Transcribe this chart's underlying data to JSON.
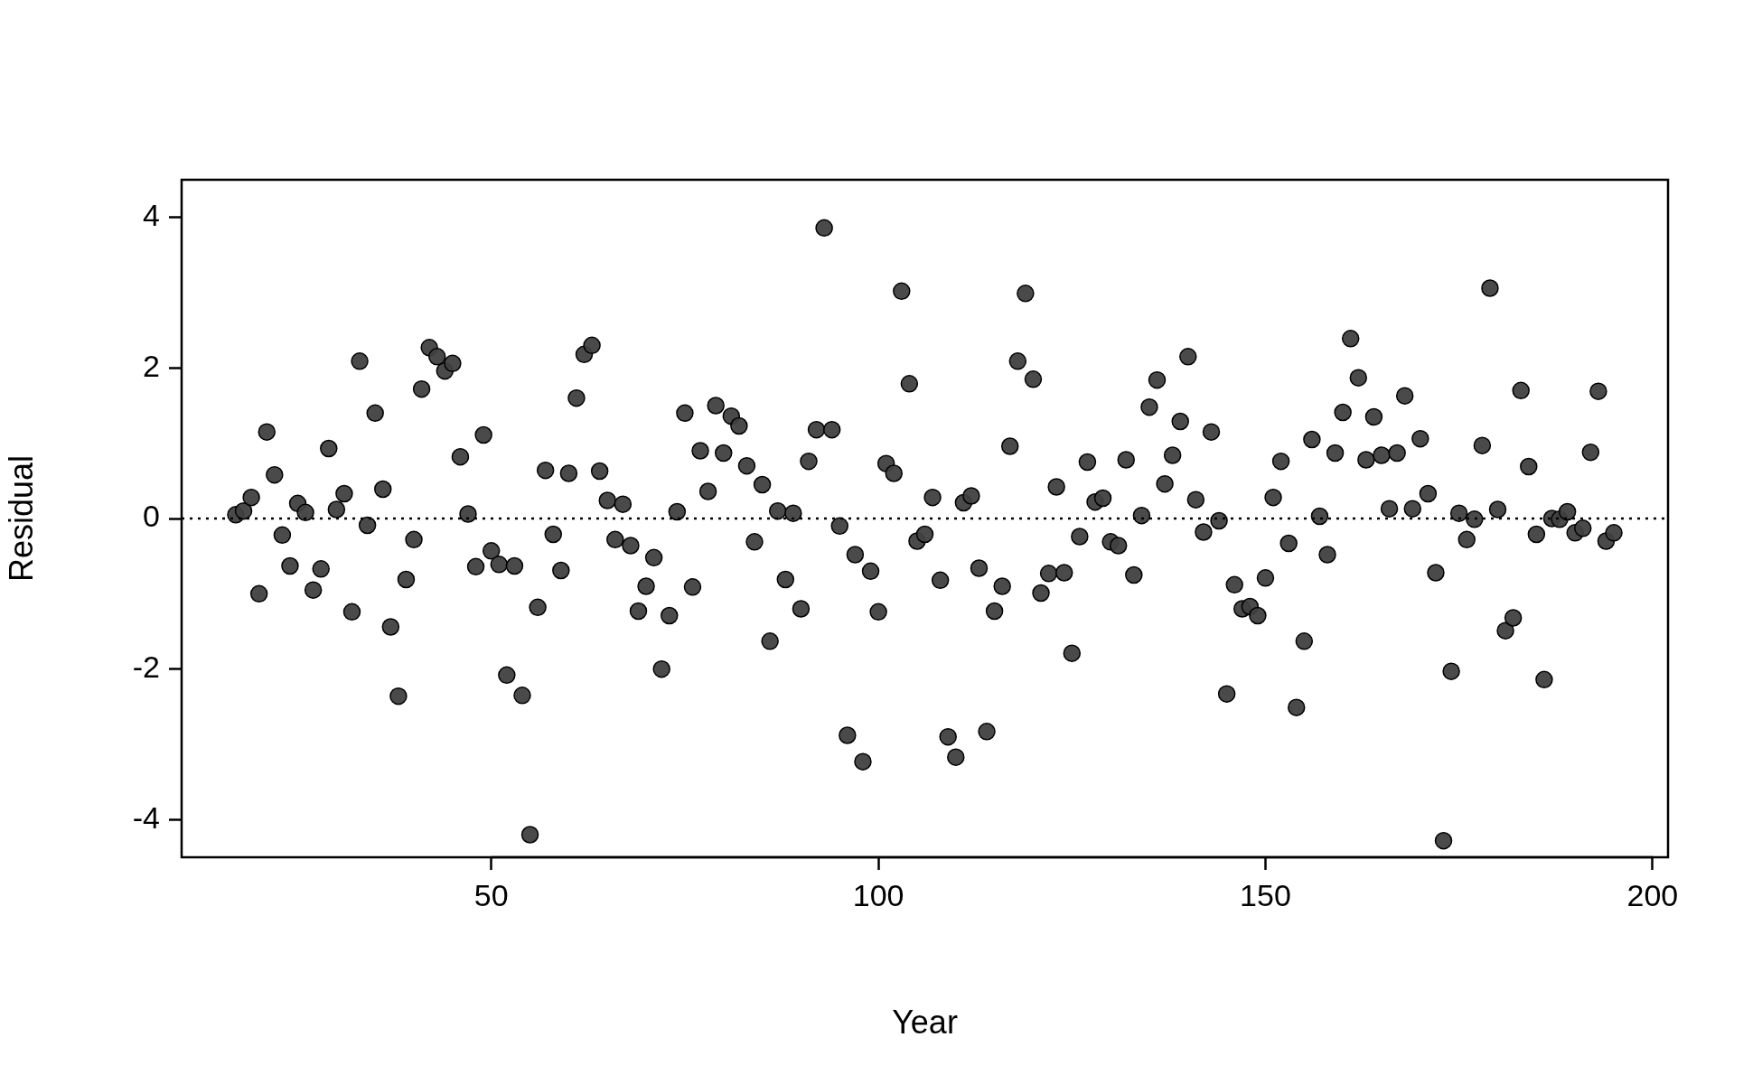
{
  "chart_data": {
    "type": "scatter",
    "xlabel": "Year",
    "ylabel": "Residual",
    "xlim": [
      10,
      202
    ],
    "xticks": [
      50,
      100,
      150,
      200
    ],
    "ylim": [
      -4.5,
      4.5
    ],
    "yticks": [
      -4,
      -2,
      0,
      2,
      4
    ],
    "marker": "circle",
    "grid": false,
    "legend": false,
    "ref_lines": [
      {
        "axis": "y",
        "value": 0,
        "line_style": "dotted",
        "color": "#000000"
      }
    ],
    "series": [
      {
        "color": "#404040",
        "x": [
          17,
          18,
          19,
          20,
          21,
          22,
          23,
          24,
          25,
          26,
          27,
          28,
          29,
          30,
          31,
          32,
          33,
          34,
          35,
          36,
          37,
          38,
          39,
          40,
          41,
          42,
          43,
          44,
          45,
          46,
          47,
          48,
          49,
          50,
          51,
          52,
          53,
          54,
          55,
          56,
          57,
          58,
          59,
          60,
          61,
          62,
          63,
          64,
          65,
          66,
          67,
          68,
          69,
          70,
          71,
          72,
          73,
          74,
          75,
          76,
          77,
          78,
          79,
          80,
          81,
          82,
          83,
          84,
          85,
          86,
          87,
          88,
          89,
          90,
          91,
          92,
          93,
          94,
          95,
          96,
          97,
          98,
          99,
          100,
          101,
          102,
          103,
          104,
          105,
          106,
          107,
          108,
          109,
          110,
          111,
          112,
          113,
          114,
          115,
          116,
          117,
          118,
          119,
          120,
          121,
          122,
          123,
          124,
          125,
          126,
          127,
          128,
          129,
          130,
          131,
          132,
          133,
          134,
          135,
          136,
          137,
          138,
          139,
          140,
          141,
          142,
          143,
          144,
          145,
          146,
          147,
          148,
          149,
          150,
          151,
          152,
          153,
          154,
          155,
          156,
          157,
          158,
          159,
          160,
          161,
          162,
          163,
          164,
          165,
          166,
          167,
          168,
          169,
          170,
          171,
          172,
          173,
          174,
          175,
          176,
          177,
          178,
          179,
          180,
          181,
          182,
          183,
          184,
          185,
          186,
          187,
          188,
          189,
          190,
          191,
          192,
          193,
          194,
          195
        ],
        "values": [
          0.05,
          0.1,
          0.28,
          -1.0,
          1.15,
          0.58,
          -0.22,
          -0.63,
          0.2,
          0.08,
          -0.95,
          -0.67,
          0.93,
          0.12,
          0.33,
          -1.24,
          2.09,
          -0.09,
          1.4,
          0.39,
          -1.44,
          -2.36,
          -0.81,
          -0.28,
          1.72,
          2.27,
          2.15,
          1.96,
          2.06,
          0.82,
          0.06,
          -0.64,
          1.11,
          -0.43,
          -0.61,
          -2.08,
          -0.63,
          -2.35,
          -4.2,
          -1.18,
          0.64,
          -0.21,
          -0.69,
          0.6,
          1.6,
          2.18,
          2.3,
          0.63,
          0.24,
          -0.28,
          0.19,
          -0.36,
          -1.23,
          -0.9,
          -0.52,
          -2.0,
          -1.29,
          0.09,
          1.4,
          -0.91,
          0.9,
          0.36,
          1.5,
          0.87,
          1.36,
          1.23,
          0.7,
          -0.31,
          0.45,
          -1.63,
          0.1,
          -0.81,
          0.07,
          -1.2,
          0.76,
          1.18,
          3.86,
          1.18,
          -0.1,
          -2.88,
          -0.48,
          -3.23,
          -0.7,
          -1.24,
          0.73,
          0.6,
          3.02,
          1.79,
          -0.3,
          -0.21,
          0.28,
          -0.82,
          -2.9,
          -3.17,
          0.21,
          0.3,
          -0.66,
          -2.83,
          -1.23,
          -0.9,
          0.96,
          2.09,
          2.99,
          1.85,
          -0.99,
          -0.73,
          0.42,
          -0.72,
          -1.79,
          -0.24,
          0.75,
          0.22,
          0.27,
          -0.31,
          -0.36,
          0.78,
          -0.75,
          0.04,
          1.48,
          1.84,
          0.46,
          0.84,
          1.29,
          2.15,
          0.25,
          -0.18,
          1.15,
          -0.03,
          -2.33,
          -0.88,
          -1.2,
          -1.17,
          -1.29,
          -0.79,
          0.28,
          0.76,
          -0.33,
          -2.51,
          -1.63,
          1.05,
          0.03,
          -0.48,
          0.87,
          1.41,
          2.39,
          1.87,
          0.78,
          1.35,
          0.84,
          0.13,
          0.87,
          1.63,
          0.13,
          1.06,
          0.33,
          -0.72,
          -4.28,
          -2.03,
          0.07,
          -0.28,
          -0.01,
          0.97,
          3.06,
          0.12,
          -1.49,
          -1.32,
          1.7,
          0.69,
          -0.21,
          -2.14,
          0.0,
          -0.01,
          0.09,
          -0.19,
          -0.13,
          0.88,
          1.69,
          -0.3,
          -0.19
        ]
      }
    ]
  }
}
